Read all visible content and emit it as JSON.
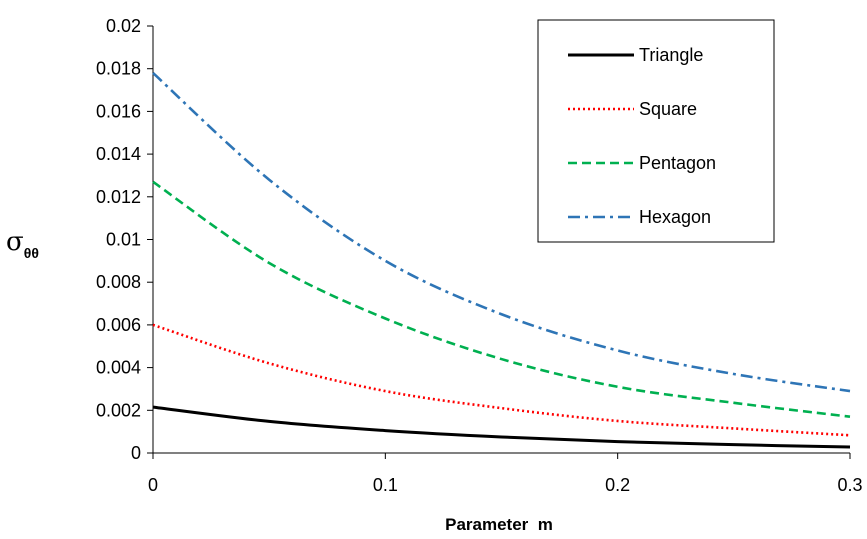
{
  "chart_data": {
    "type": "line",
    "title": "",
    "xlabel": "Parameter  m",
    "ylabel": "σ",
    "ylabel_subscript": "θθ",
    "xlim": [
      0,
      0.3
    ],
    "ylim": [
      0,
      0.02
    ],
    "x_ticks": [
      "0",
      "0.1",
      "0.2",
      "0.3"
    ],
    "y_ticks": [
      "0",
      "0.002",
      "0.004",
      "0.006",
      "0.008",
      "0.01",
      "0.012",
      "0.014",
      "0.016",
      "0.018",
      "0.02"
    ],
    "grid": false,
    "legend_position": "top-right",
    "x": [
      0,
      0.05,
      0.1,
      0.15,
      0.2,
      0.25,
      0.3
    ],
    "series": [
      {
        "name": "Triangle",
        "color": "#000000",
        "style": "solid",
        "values": [
          0.00215,
          0.00148,
          0.00105,
          0.00075,
          0.00053,
          0.00039,
          0.00028
        ]
      },
      {
        "name": "Square",
        "color": "#ff0000",
        "style": "dotted",
        "values": [
          0.006,
          0.0042,
          0.0029,
          0.0021,
          0.0015,
          0.00115,
          0.00083
        ]
      },
      {
        "name": "Pentagon",
        "color": "#00b050",
        "style": "dashed",
        "values": [
          0.0127,
          0.0089,
          0.0063,
          0.0044,
          0.0031,
          0.00235,
          0.0017
        ]
      },
      {
        "name": "Hexagon",
        "color": "#2e75b6",
        "style": "dashdot",
        "values": [
          0.0178,
          0.0128,
          0.009,
          0.0065,
          0.0048,
          0.0037,
          0.0029
        ]
      }
    ]
  }
}
